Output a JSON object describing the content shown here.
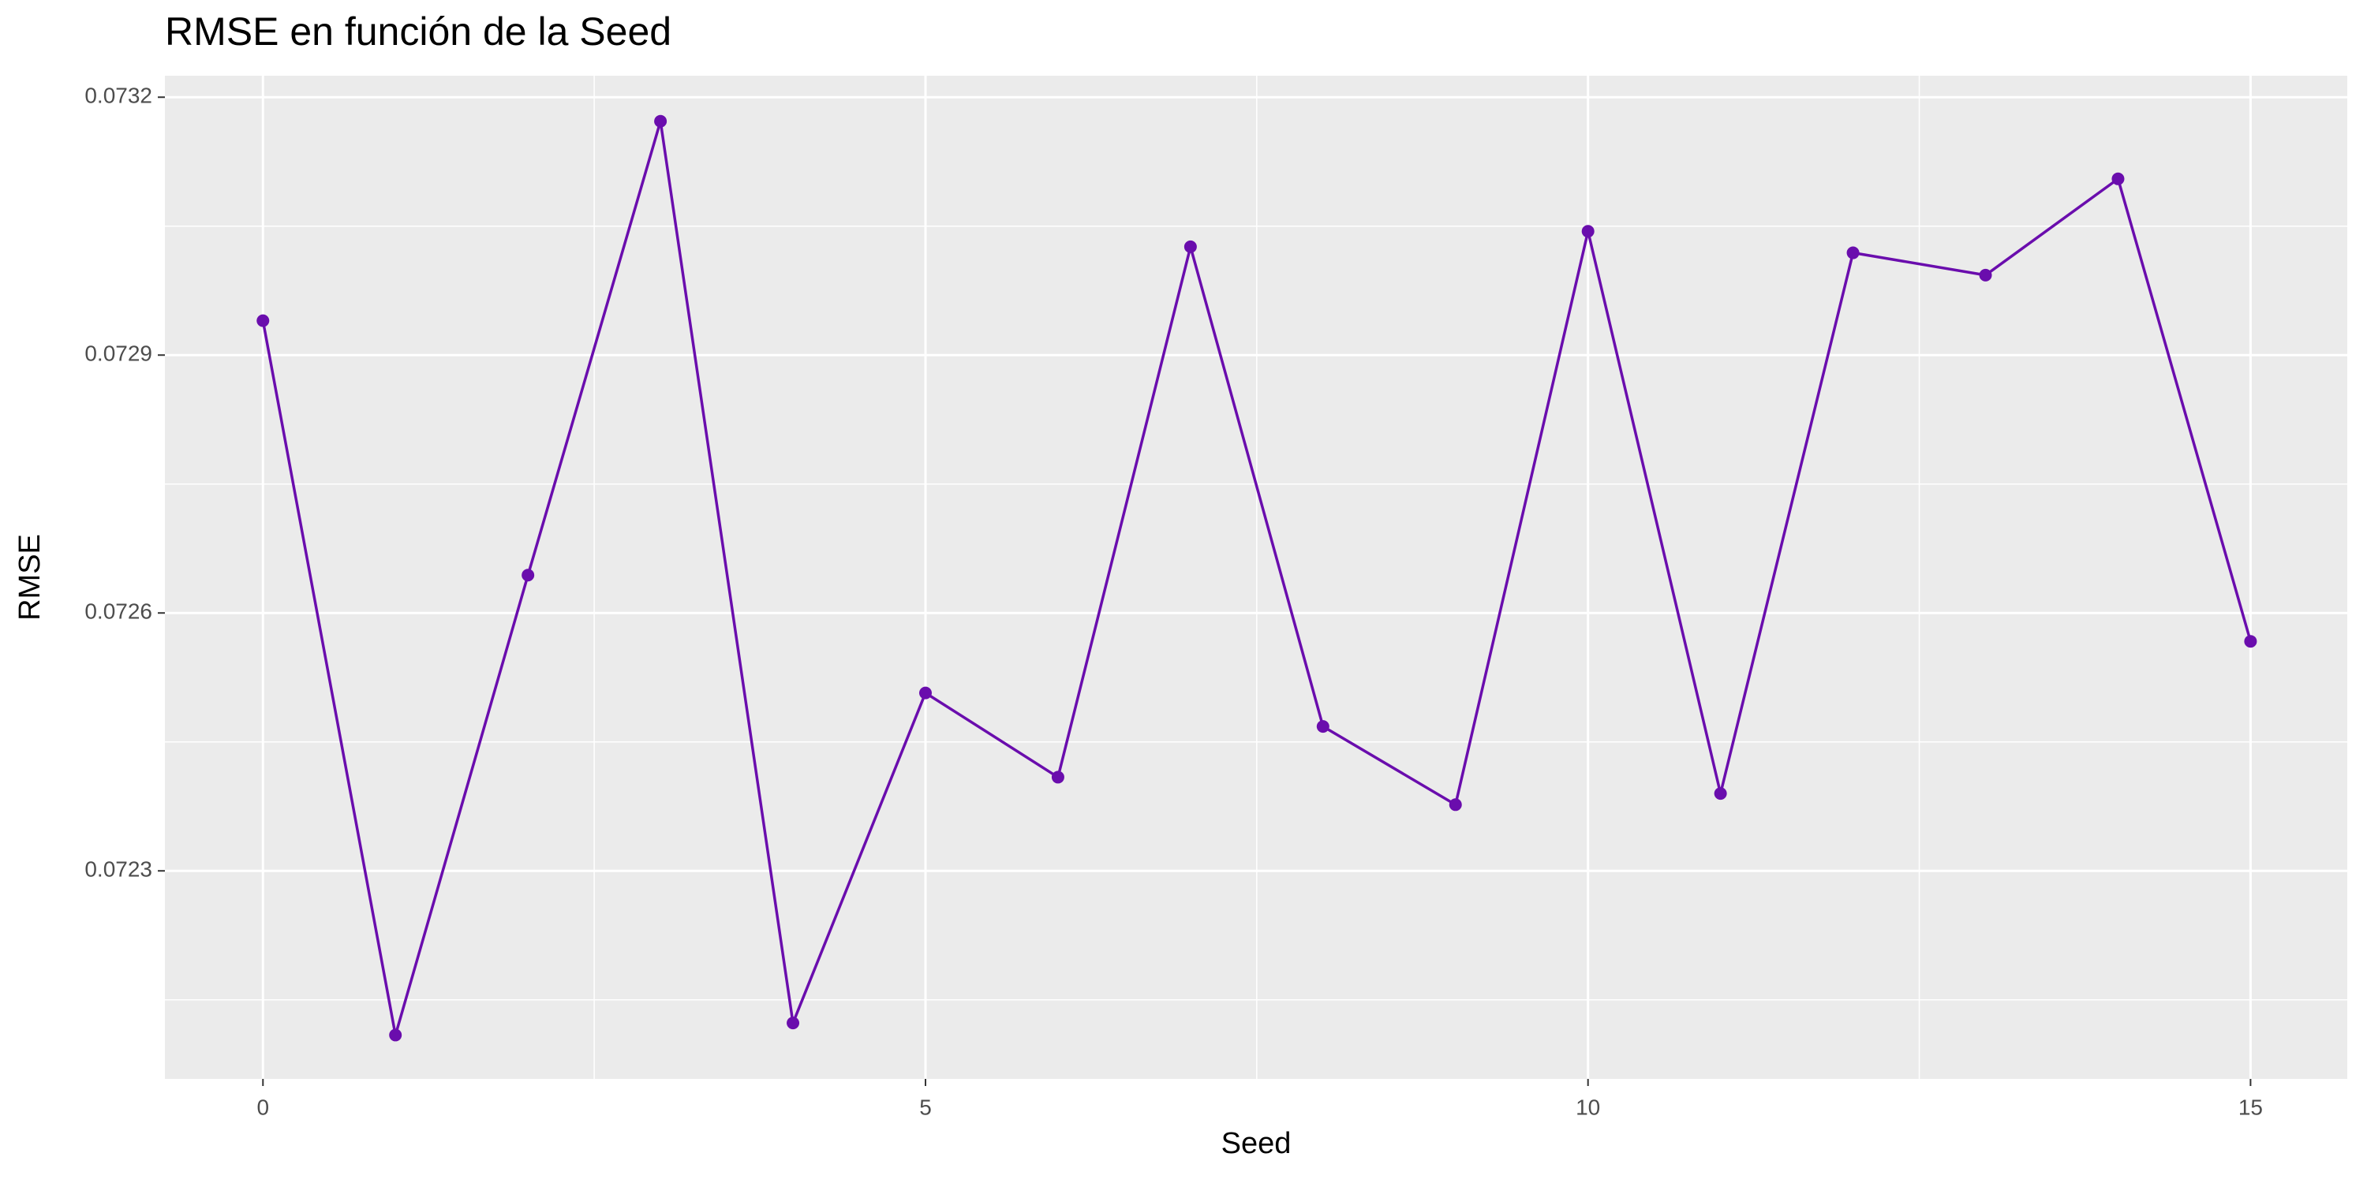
{
  "chart_data": {
    "type": "line",
    "title": "RMSE en función de la Seed",
    "x_label": "Seed",
    "y_label": "RMSE",
    "x": [
      0,
      1,
      2,
      3,
      4,
      5,
      6,
      7,
      8,
      9,
      10,
      11,
      12,
      13,
      14,
      15
    ],
    "series": [
      {
        "name": "RMSE",
        "color": "#6a0dad",
        "values": [
          0.07294,
          0.072109,
          0.072644,
          0.073172,
          0.072123,
          0.072507,
          0.072409,
          0.073026,
          0.072468,
          0.072377,
          0.073044,
          0.07239,
          0.073019,
          0.072993,
          0.073105,
          0.072567
        ]
      }
    ],
    "xlim": [
      -0.74,
      15.73
    ],
    "xticks": [
      0,
      5,
      10,
      15
    ],
    "ylim": [
      0.072058,
      0.073225
    ],
    "yticks": [
      0.0723,
      0.0726,
      0.0729,
      0.0732
    ],
    "grid": true
  }
}
